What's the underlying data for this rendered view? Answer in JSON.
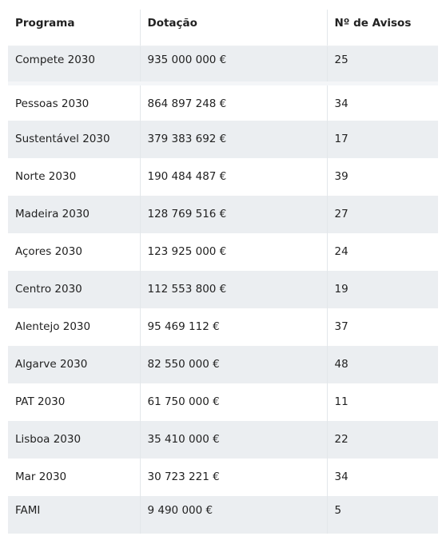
{
  "table": {
    "headers": [
      "Programa",
      "Dotação",
      "Nº de Avisos"
    ],
    "rows": [
      [
        "Compete 2030",
        "935 000 000 €",
        "25"
      ],
      [
        "Pessoas 2030",
        "864 897 248 €",
        "34"
      ],
      [
        "Sustentável 2030",
        "379 383 692 €",
        "17"
      ],
      [
        "Norte 2030",
        "190 484 487 €",
        "39"
      ],
      [
        "Madeira 2030",
        "128 769 516 €",
        "27"
      ],
      [
        "Açores 2030",
        "123 925 000 €",
        "24"
      ],
      [
        "Centro 2030",
        "112 553 800 €",
        "19"
      ],
      [
        "Alentejo 2030",
        "95 469 112 €",
        "37"
      ],
      [
        "Algarve 2030",
        "82 550 000 €",
        "48"
      ],
      [
        "PAT 2030",
        "61 750 000 €",
        "11"
      ],
      [
        "Lisboa 2030",
        "35 410 000 €",
        "22"
      ],
      [
        "Mar 2030",
        "30 723 221 €",
        "34"
      ],
      [
        "FAMI",
        "9 490 000 €",
        "5"
      ]
    ]
  },
  "colors": {
    "stripe": "#ebeef1",
    "border": "#e3e7ea",
    "text": "#222222"
  }
}
